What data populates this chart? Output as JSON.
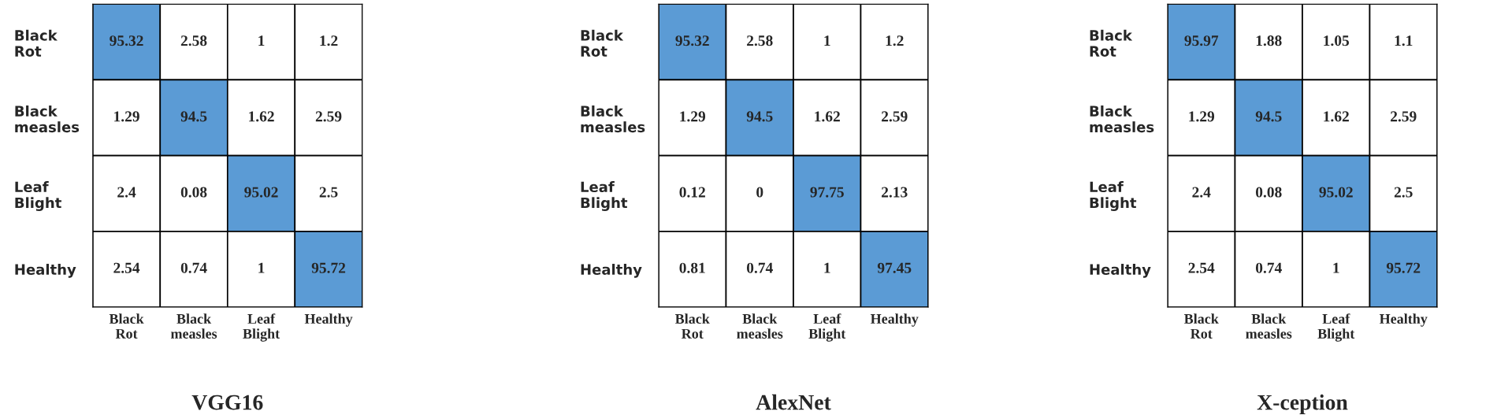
{
  "chart_data": [
    {
      "type": "heatmap",
      "title": "VGG16",
      "categories": [
        "Black\nRot",
        "Black\nmeasles",
        "Leaf\nBlight",
        "Healthy"
      ],
      "y_categories": [
        "Black\nRot",
        "Black\nmeasles",
        "Leaf\nBlight",
        "Healthy"
      ],
      "colors": [
        "#ffffff",
        "#5b9bd5"
      ],
      "data_labels": true,
      "cells": [
        [
          95.32,
          2.58,
          1,
          1.2
        ],
        [
          1.29,
          94.5,
          1.62,
          2.59
        ],
        [
          2.4,
          0.08,
          95.02,
          2.5
        ],
        [
          2.54,
          0.74,
          1,
          95.72
        ]
      ]
    },
    {
      "type": "heatmap",
      "title": "AlexNet",
      "categories": [
        "Black\nRot",
        "Black\nmeasles",
        "Leaf\nBlight",
        "Healthy"
      ],
      "y_categories": [
        "Black\nRot",
        "Black\nmeasles",
        "Leaf\nBlight",
        "Healthy"
      ],
      "colors": [
        "#ffffff",
        "#5b9bd5"
      ],
      "data_labels": true,
      "cells": [
        [
          95.32,
          2.58,
          1,
          1.2
        ],
        [
          1.29,
          94.5,
          1.62,
          2.59
        ],
        [
          0.12,
          0,
          97.75,
          2.13
        ],
        [
          0.81,
          0.74,
          1,
          97.45
        ]
      ]
    },
    {
      "type": "heatmap",
      "title": "X-ception",
      "categories": [
        "Black\nRot",
        "Black\nmeasles",
        "Leaf\nBlight",
        "Healthy"
      ],
      "y_categories": [
        "Black\nRot",
        "Black\nmeasles",
        "Leaf\nBlight",
        "Healthy"
      ],
      "colors": [
        "#ffffff",
        "#5b9bd5"
      ],
      "data_labels": true,
      "cells": [
        [
          95.97,
          1.88,
          1.05,
          1.1
        ],
        [
          1.29,
          94.5,
          1.62,
          2.59
        ],
        [
          2.4,
          0.08,
          95.02,
          2.5
        ],
        [
          2.54,
          0.74,
          1,
          95.72
        ]
      ]
    }
  ]
}
